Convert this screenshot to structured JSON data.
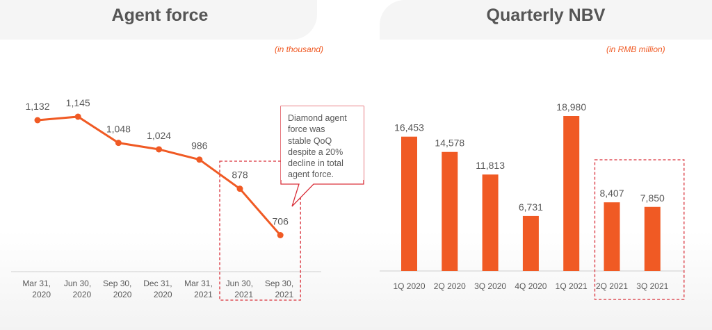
{
  "colors": {
    "accent": "#f05a24",
    "highlight_box": "#d9303a",
    "text": "#595959",
    "title": "#555555"
  },
  "chart_data": [
    {
      "type": "line",
      "title": "Agent force",
      "unit_note": "(in thousand)",
      "categories": [
        "Mar 31, 2020",
        "Jun 30, 2020",
        "Sep 30, 2020",
        "Dec 31, 2020",
        "Mar 31, 2021",
        "Jun 30, 2021",
        "Sep 30, 2021"
      ],
      "category_lines": [
        [
          "Mar 31,",
          "2020"
        ],
        [
          "Jun 30,",
          "2020"
        ],
        [
          "Sep 30,",
          "2020"
        ],
        [
          "Dec 31,",
          "2020"
        ],
        [
          "Mar 31,",
          "2021"
        ],
        [
          "Jun 30,",
          "2021"
        ],
        [
          "Sep 30,",
          "2021"
        ]
      ],
      "values": [
        1132,
        1145,
        1048,
        1024,
        986,
        878,
        706
      ],
      "value_labels": [
        "1,132",
        "1,145",
        "1,048",
        "1,024",
        "986",
        "878",
        "706"
      ],
      "xlabel": "",
      "ylabel": "",
      "ylim": [
        0,
        1300
      ],
      "grid": false,
      "highlighted_categories": [
        "Jun 30, 2021",
        "Sep 30, 2021"
      ],
      "annotation": {
        "lines": [
          "Diamond agent",
          "force was",
          "stable QoQ",
          "despite a 20%",
          "decline in total",
          "agent force."
        ]
      }
    },
    {
      "type": "bar",
      "title": "Quarterly NBV",
      "unit_note": "(in RMB million)",
      "categories": [
        "1Q 2020",
        "2Q 2020",
        "3Q 2020",
        "4Q 2020",
        "1Q 2021",
        "2Q 2021",
        "3Q 2021"
      ],
      "values": [
        16453,
        14578,
        11813,
        6731,
        18980,
        8407,
        7850
      ],
      "value_labels": [
        "16,453",
        "14,578",
        "11,813",
        "6,731",
        "18,980",
        "8,407",
        "7,850"
      ],
      "xlabel": "",
      "ylabel": "",
      "ylim": [
        0,
        20000
      ],
      "grid": false,
      "highlighted_categories": [
        "2Q 2021",
        "3Q 2021"
      ]
    }
  ]
}
